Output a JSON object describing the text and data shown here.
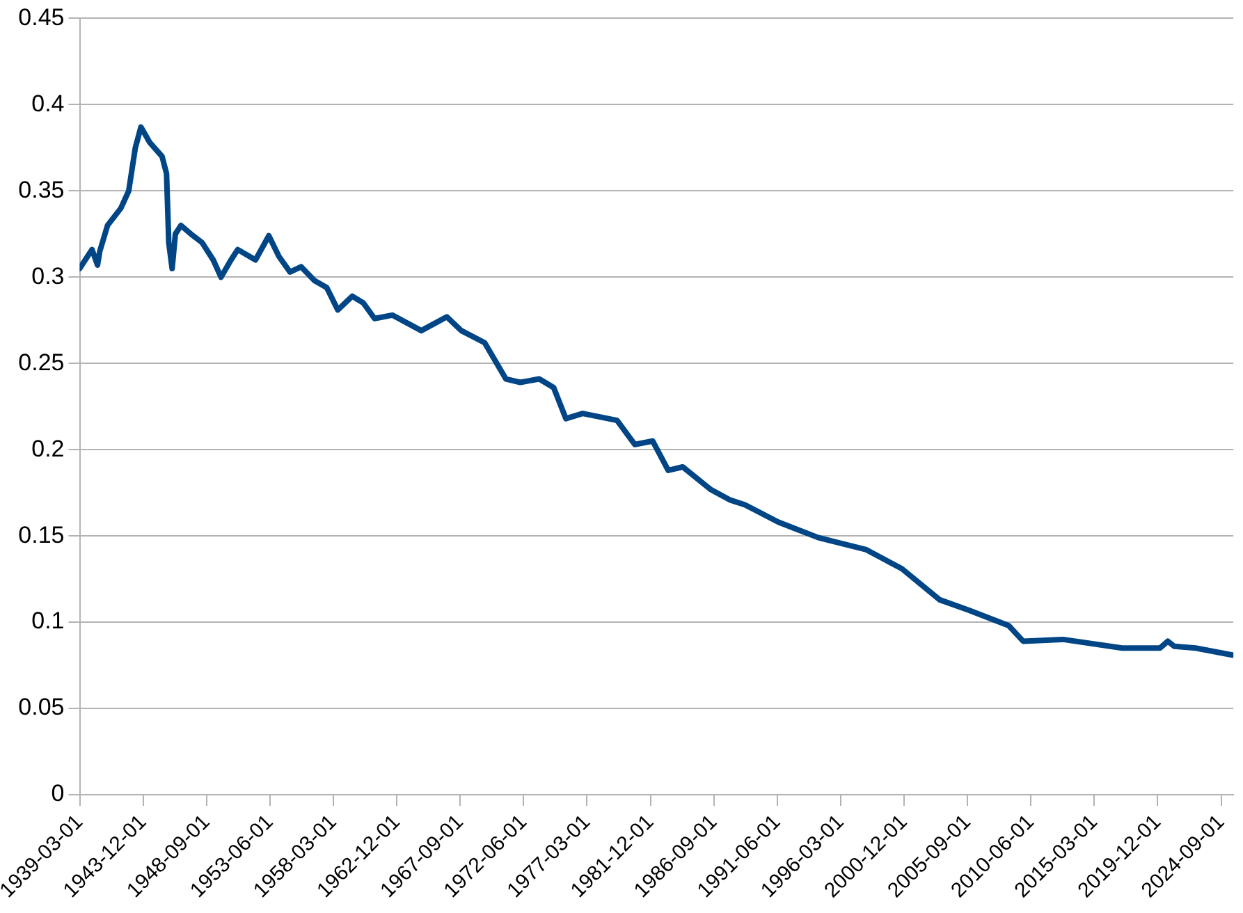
{
  "chart_data": {
    "type": "line",
    "x": [
      "1939-03",
      "1939-10",
      "1940-02",
      "1940-07",
      "1940-09",
      "1941-04",
      "1942-04",
      "1942-11",
      "1943-05",
      "1943-10",
      "1944-06",
      "1945-05",
      "1945-09",
      "1945-11",
      "1946-02",
      "1946-05",
      "1946-10",
      "1947-07",
      "1948-05",
      "1949-03",
      "1949-10",
      "1950-07",
      "1951-01",
      "1952-05",
      "1953-05",
      "1954-02",
      "1954-12",
      "1955-10",
      "1956-10",
      "1957-09",
      "1958-07",
      "1959-08",
      "1960-06",
      "1961-04",
      "1962-08",
      "1964-10",
      "1966-09",
      "1967-10",
      "1969-07",
      "1971-02",
      "1972-03",
      "1973-08",
      "1974-09",
      "1975-08",
      "1976-11",
      "1979-06",
      "1980-10",
      "1982-02",
      "1983-04",
      "1984-05",
      "1986-06",
      "1987-11",
      "1989-01",
      "1991-07",
      "1994-07",
      "1998-02",
      "2000-10",
      "2003-08",
      "2005-10",
      "2008-10",
      "2009-11",
      "2012-11",
      "2017-04",
      "2020-02",
      "2020-09",
      "2021-03",
      "2022-10",
      "2025-07"
    ],
    "series": [
      {
        "color": "#004586",
        "values": [
          0.305,
          0.312,
          0.316,
          0.307,
          0.315,
          0.33,
          0.34,
          0.35,
          0.375,
          0.387,
          0.378,
          0.37,
          0.36,
          0.32,
          0.305,
          0.325,
          0.33,
          0.325,
          0.32,
          0.31,
          0.3,
          0.31,
          0.316,
          0.31,
          0.324,
          0.312,
          0.303,
          0.306,
          0.298,
          0.294,
          0.281,
          0.289,
          0.285,
          0.276,
          0.278,
          0.269,
          0.277,
          0.269,
          0.262,
          0.241,
          0.239,
          0.241,
          0.236,
          0.218,
          0.221,
          0.217,
          0.203,
          0.205,
          0.188,
          0.19,
          0.177,
          0.171,
          0.168,
          0.158,
          0.149,
          0.142,
          0.131,
          0.113,
          0.107,
          0.098,
          0.089,
          0.09,
          0.085,
          0.085,
          0.089,
          0.086,
          0.085,
          0.081
        ]
      }
    ],
    "xlim": [
      "1939-03-01",
      "2025-08-01"
    ],
    "xticks": [
      "1939-03-01",
      "1943-12-01",
      "1948-09-01",
      "1953-06-01",
      "1958-03-01",
      "1962-12-01",
      "1967-09-01",
      "1972-06-01",
      "1977-03-01",
      "1981-12-01",
      "1986-09-01",
      "1991-06-01",
      "1996-03-01",
      "2000-12-01",
      "2005-09-01",
      "2010-06-01",
      "2015-03-01",
      "2019-12-01",
      "2024-09-01"
    ],
    "ylim": [
      0,
      0.45
    ],
    "yticks": [
      0,
      0.05,
      0.1,
      0.15,
      0.2,
      0.25,
      0.3,
      0.35,
      0.4,
      0.45
    ],
    "grid": "y",
    "legend": false,
    "marker": "none",
    "line_style": "solid"
  }
}
